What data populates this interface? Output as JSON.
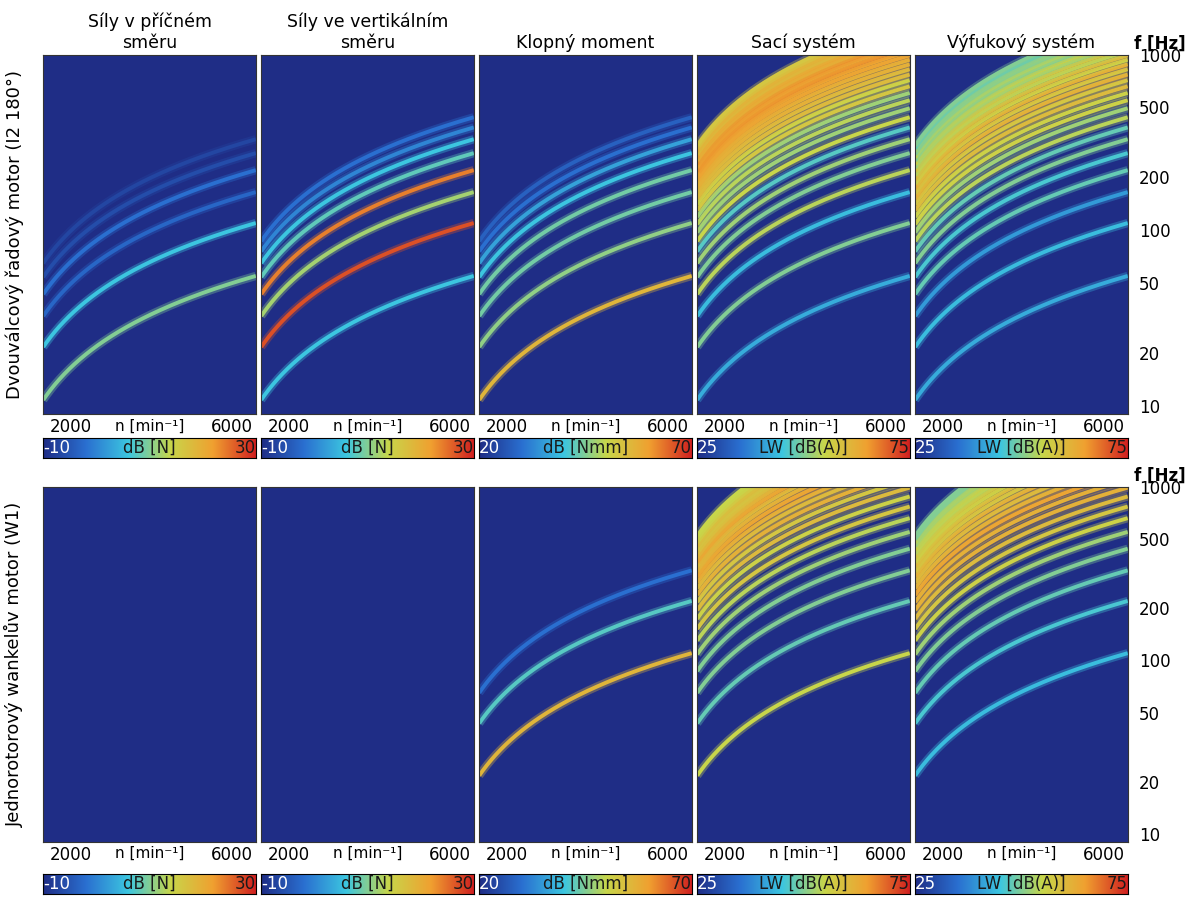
{
  "chart_data": {
    "type": "order_spectrum_grid",
    "columns": [
      "Síly v příčném směru",
      "Síly ve vertikálním směru",
      "Klopný moment",
      "Sací systém",
      "Výfukový systém"
    ],
    "rows": [
      "Dvouválcový řadový motor (I2 180°)",
      "Jednorotorový wankelův motor (W1)"
    ],
    "xlabel": "n [min⁻¹]",
    "ylabel": "f [Hz]",
    "xlim": [
      1300,
      6600
    ],
    "xticks": [
      2000,
      6000
    ],
    "ylim": [
      9,
      1000
    ],
    "yticks": [
      10,
      20,
      50,
      100,
      200,
      500,
      1000
    ],
    "log": "y",
    "panels": [
      [
        {
          "type": "order_lines",
          "orders": [
            0.5,
            1,
            1.5,
            2,
            2.5,
            3
          ],
          "levels": [
            10,
            6,
            -3,
            -2,
            -6,
            -7
          ],
          "colorbar": {
            "label": "dB [N]",
            "range": [
              -10,
              30
            ],
            "ticks": [
              -10,
              30
            ]
          }
        },
        {
          "type": "order_lines",
          "orders": [
            0.5,
            1,
            1.5,
            2,
            2.5,
            3,
            3.5,
            4
          ],
          "levels": [
            6,
            27,
            12,
            24,
            8,
            6,
            0,
            -2
          ],
          "colorbar": {
            "label": "dB [N]",
            "range": [
              -10,
              30
            ],
            "ticks": [
              -10,
              30
            ]
          }
        },
        {
          "type": "order_lines",
          "orders": [
            0.5,
            1,
            1.5,
            2,
            2.5,
            3,
            3.5,
            4
          ],
          "levels": [
            56,
            46,
            44,
            44,
            40,
            36,
            30,
            28
          ],
          "colorbar": {
            "label": "dB [Nmm]",
            "range": [
              20,
              70
            ],
            "ticks": [
              20,
              70
            ]
          }
        },
        {
          "type": "order_lines",
          "orders": [
            0.5,
            1,
            1.5,
            2,
            2.5,
            3,
            3.5,
            4,
            4.5,
            5,
            5.5,
            6,
            6.5,
            7,
            7.5,
            8,
            8.5,
            9,
            9.5,
            10,
            10.5,
            11,
            11.5,
            12,
            12.5,
            13,
            13.5,
            14
          ],
          "levels": [
            42,
            50,
            44,
            54,
            50,
            52,
            47,
            55,
            52,
            54,
            52,
            58,
            56,
            60,
            60,
            62,
            62,
            64,
            64,
            66,
            64,
            66,
            62,
            64,
            60,
            62,
            60,
            58
          ],
          "colorbar": {
            "label": "LW [dB(A)]",
            "range": [
              25,
              75
            ],
            "ticks": [
              25,
              75
            ]
          }
        },
        {
          "type": "order_lines",
          "orders": [
            0.5,
            1,
            1.5,
            2,
            2.5,
            3,
            3.5,
            4,
            4.5,
            5,
            5.5,
            6,
            6.5,
            7,
            7.5,
            8,
            8.5,
            9,
            9.5,
            10,
            10.5,
            11,
            11.5,
            12,
            12.5,
            13,
            13.5,
            14
          ],
          "levels": [
            42,
            44,
            40,
            48,
            46,
            50,
            48,
            54,
            52,
            56,
            56,
            60,
            58,
            62,
            58,
            62,
            56,
            60,
            54,
            58,
            52,
            56,
            50,
            54,
            50,
            52,
            48,
            50
          ],
          "colorbar": {
            "label": "LW [dB(A)]",
            "range": [
              25,
              75
            ],
            "ticks": [
              25,
              75
            ]
          }
        }
      ],
      [
        {
          "type": "order_lines",
          "orders": [],
          "levels": [],
          "colorbar": {
            "label": "dB [N]",
            "range": [
              -10,
              30
            ],
            "ticks": [
              -10,
              30
            ]
          }
        },
        {
          "type": "order_lines",
          "orders": [],
          "levels": [],
          "colorbar": {
            "label": "dB [N]",
            "range": [
              -10,
              30
            ],
            "ticks": [
              -10,
              30
            ]
          }
        },
        {
          "type": "order_lines",
          "orders": [
            1,
            2,
            3
          ],
          "levels": [
            56,
            42,
            30
          ],
          "colorbar": {
            "label": "dB [Nmm]",
            "range": [
              20,
              70
            ],
            "ticks": [
              20,
              70
            ]
          }
        },
        {
          "type": "order_lines",
          "orders": [
            1,
            2,
            3,
            4,
            5,
            6,
            7,
            8,
            9,
            10,
            11,
            12,
            13,
            14,
            15,
            16,
            17,
            18,
            19,
            20,
            21,
            22,
            23,
            24
          ],
          "levels": [
            55,
            48,
            50,
            50,
            52,
            54,
            58,
            56,
            60,
            58,
            62,
            60,
            62,
            64,
            62,
            60,
            64,
            62,
            60,
            58,
            60,
            58,
            56,
            55
          ],
          "colorbar": {
            "label": "LW [dB(A)]",
            "range": [
              25,
              75
            ],
            "ticks": [
              25,
              75
            ]
          }
        },
        {
          "type": "order_lines",
          "orders": [
            1,
            2,
            3,
            4,
            5,
            6,
            7,
            8,
            9,
            10,
            11,
            12,
            13,
            14,
            15,
            16,
            17,
            18,
            19,
            20,
            21,
            22,
            23,
            24
          ],
          "levels": [
            44,
            46,
            48,
            50,
            52,
            56,
            58,
            60,
            62,
            62,
            64,
            62,
            60,
            62,
            58,
            60,
            56,
            58,
            54,
            56,
            52,
            54,
            50,
            50
          ],
          "colorbar": {
            "label": "LW [dB(A)]",
            "range": [
              25,
              75
            ],
            "ticks": [
              25,
              75
            ]
          }
        }
      ]
    ]
  }
}
